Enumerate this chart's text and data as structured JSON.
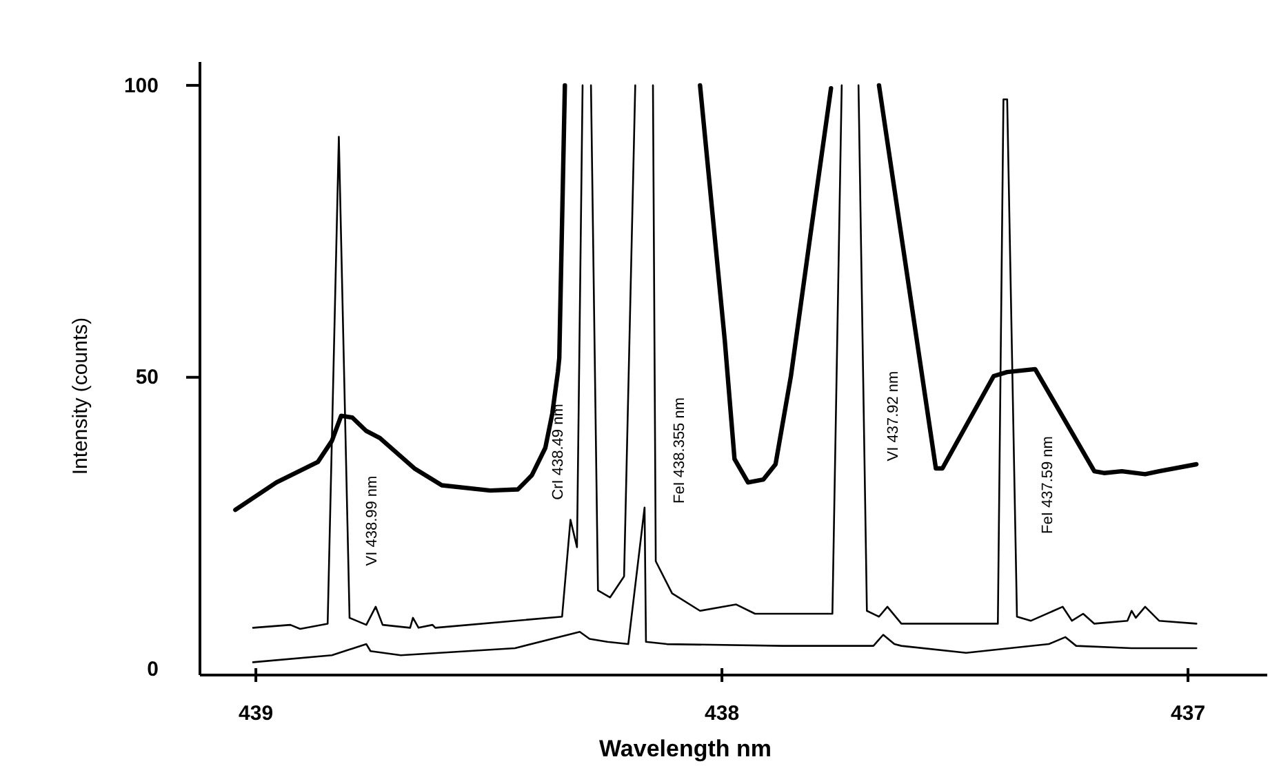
{
  "chart_data": {
    "type": "line",
    "xlabel": "Wavelength nm",
    "ylabel": "Intensity (counts)",
    "xlim": [
      439.12,
      436.83
    ],
    "xticks": [
      439,
      438,
      437
    ],
    "ylim": [
      -1,
      104
    ],
    "yticks": [
      0,
      50,
      100
    ],
    "grid": false,
    "marker": "none",
    "line_style": "solid",
    "series": [
      {
        "color": "#000000",
        "x": [
          439.044,
          438.956,
          438.867,
          438.837,
          438.817,
          438.793,
          438.763,
          438.734,
          438.66,
          438.601,
          438.497,
          438.438,
          438.408,
          438.379,
          438.364,
          438.352,
          438.349,
          438.337,
          438.2,
          438.047,
          437.994,
          437.973,
          437.944,
          437.911,
          437.885,
          437.852,
          437.811,
          437.766,
          437.72,
          437.663,
          437.541,
          437.527,
          437.417,
          437.388,
          437.328,
          437.201,
          437.18,
          437.142,
          437.092,
          437.062,
          436.982
        ],
        "values": [
          27.3,
          32.0,
          35.5,
          39.1,
          43.4,
          43.1,
          40.8,
          39.6,
          34.4,
          31.5,
          30.6,
          30.8,
          33.2,
          37.9,
          43.8,
          50.9,
          53.3,
          100,
          null,
          100,
          56.4,
          36.0,
          32.0,
          32.5,
          35.1,
          50.2,
          73.9,
          99.5,
          null,
          100,
          34.4,
          34.4,
          50.2,
          50.9,
          51.4,
          33.9,
          33.6,
          33.9,
          33.4,
          33.9,
          35.1
        ]
      },
      {
        "color": "#000000",
        "x": [
          439.006,
          438.926,
          438.905,
          438.846,
          438.822,
          438.799,
          438.763,
          438.743,
          438.728,
          438.669,
          438.663,
          438.651,
          438.621,
          438.615,
          438.343,
          438.325,
          438.311,
          438.299,
          438.29,
          438.281,
          438.266,
          438.24,
          438.21,
          438.186,
          438.17,
          438.148,
          438.142,
          438.107,
          438.047,
          437.97,
          437.929,
          437.763,
          437.743,
          437.72,
          437.707,
          437.689,
          437.663,
          437.645,
          437.615,
          437.408,
          437.396,
          437.388,
          437.367,
          437.337,
          437.269,
          437.249,
          437.225,
          437.201,
          437.13,
          437.121,
          437.112,
          437.092,
          437.062,
          436.982
        ],
        "values": [
          7.1,
          7.6,
          6.9,
          7.8,
          91.2,
          8.8,
          7.6,
          10.7,
          7.6,
          7.1,
          8.8,
          7.1,
          7.6,
          7.1,
          9.0,
          25.6,
          20.9,
          100,
          null,
          100,
          13.5,
          12.3,
          15.9,
          100,
          null,
          100,
          18.5,
          13.0,
          10.0,
          11.1,
          9.5,
          9.5,
          100,
          null,
          100,
          10.0,
          9.0,
          10.7,
          7.8,
          7.8,
          97.6,
          97.6,
          9.0,
          8.3,
          10.7,
          8.3,
          9.5,
          7.8,
          8.3,
          10.0,
          8.8,
          10.7,
          8.3,
          7.8
        ]
      },
      {
        "color": "#000000",
        "x": [
          439.006,
          438.837,
          438.763,
          438.754,
          438.689,
          438.444,
          438.305,
          438.284,
          438.246,
          438.201,
          438.166,
          438.163,
          438.118,
          437.87,
          437.675,
          437.654,
          437.63,
          437.615,
          437.476,
          437.299,
          437.263,
          437.24,
          437.121,
          436.982
        ],
        "values": [
          1.2,
          2.4,
          4.3,
          3.1,
          2.4,
          3.6,
          6.4,
          5.2,
          4.7,
          4.3,
          27.7,
          4.7,
          4.3,
          4.0,
          4.0,
          5.9,
          4.3,
          4.0,
          2.8,
          4.3,
          5.5,
          4.0,
          3.6,
          3.6
        ]
      }
    ],
    "annotations": [
      "VI 438.99 nm",
      "CrI 438.49 nm",
      "FeI 438.355 nm",
      "VI 437.92 nm",
      "FeI 437.59 nm"
    ]
  }
}
